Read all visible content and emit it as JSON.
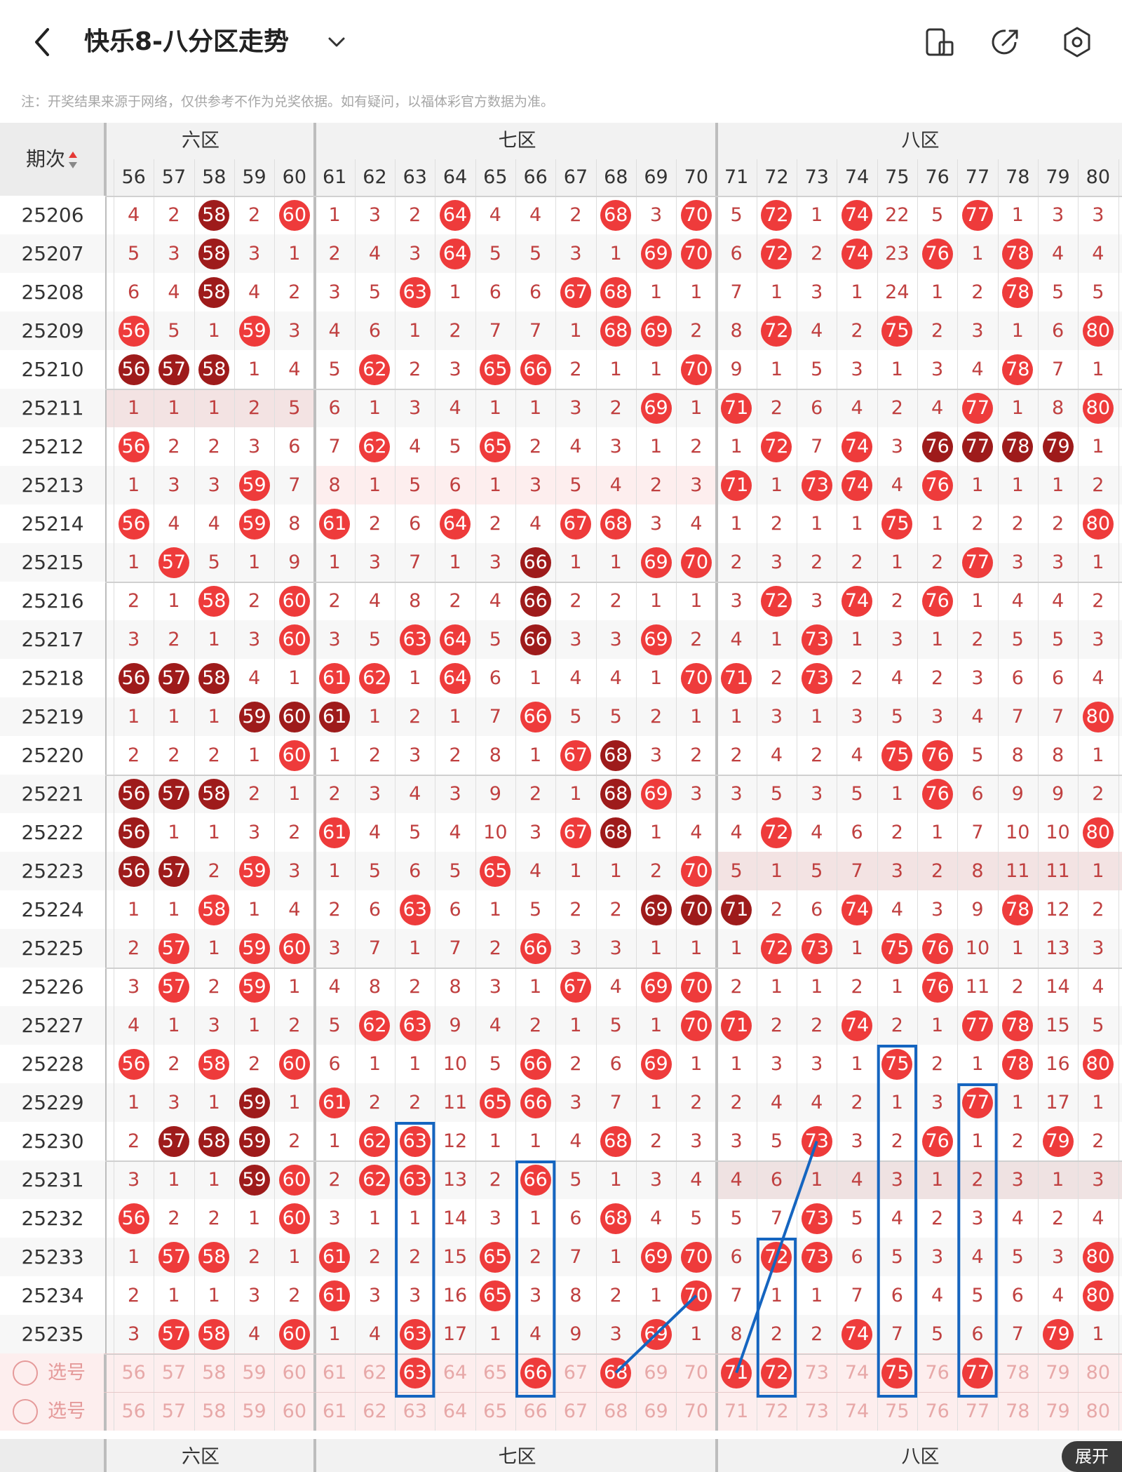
{
  "header": {
    "title": "快乐8-八分区走势",
    "back_icon": "chevron-left-icon",
    "dropdown_icon": "chevron-down-icon",
    "icons": [
      "screen-rotate-icon",
      "share-icon",
      "settings-icon"
    ]
  },
  "notice": "注：开奖结果来源于网络，仅供参考不作为兑奖依据。如有疑问，以福体彩官方数据为准。",
  "table": {
    "period_header": "期次",
    "zones": [
      {
        "label": "六区"
      },
      {
        "label": "七区"
      },
      {
        "label": "八区"
      }
    ],
    "zone_cut_label": "六区",
    "columns": [
      56,
      57,
      58,
      59,
      60,
      61,
      62,
      63,
      64,
      65,
      66,
      67,
      68,
      69,
      70,
      71,
      72,
      73,
      74,
      75,
      76,
      77,
      78,
      79,
      80
    ],
    "periods": [
      "25206",
      "25207",
      "25208",
      "25209",
      "25210",
      "25211",
      "25212",
      "25213",
      "25214",
      "25215",
      "25216",
      "25217",
      "25218",
      "25219",
      "25220",
      "25221",
      "25222",
      "25223",
      "25224",
      "25225",
      "25226",
      "25227",
      "25228",
      "25229",
      "25230",
      "25231",
      "25232",
      "25233",
      "25234",
      "25235"
    ],
    "rows": [
      [
        4,
        2,
        "D58",
        2,
        "R60",
        1,
        3,
        2,
        "R64",
        4,
        4,
        2,
        "R68",
        3,
        "R70",
        5,
        "R72",
        1,
        "R74",
        22,
        5,
        "R77",
        1,
        3,
        3
      ],
      [
        5,
        3,
        "D58",
        3,
        1,
        2,
        4,
        3,
        "R64",
        5,
        5,
        3,
        1,
        "R69",
        "R70",
        6,
        "R72",
        2,
        "R74",
        23,
        "R76",
        1,
        "R78",
        4,
        4
      ],
      [
        6,
        4,
        "D58",
        4,
        2,
        3,
        5,
        "R63",
        1,
        6,
        6,
        "R67",
        "R68",
        1,
        1,
        7,
        1,
        3,
        1,
        24,
        1,
        2,
        "R78",
        5,
        5
      ],
      [
        "R56",
        5,
        1,
        "R59",
        3,
        4,
        6,
        1,
        2,
        7,
        7,
        1,
        "R68",
        "R69",
        2,
        8,
        "R72",
        4,
        2,
        "R75",
        2,
        3,
        1,
        6,
        "R80"
      ],
      [
        "D56",
        "D57",
        "D58",
        1,
        4,
        5,
        "R62",
        2,
        3,
        "R65",
        "R66",
        2,
        1,
        1,
        "R70",
        9,
        1,
        5,
        3,
        1,
        3,
        4,
        "R78",
        7,
        1
      ],
      [
        1,
        1,
        1,
        2,
        5,
        6,
        1,
        3,
        4,
        1,
        1,
        3,
        2,
        "R69",
        1,
        "R71",
        2,
        6,
        4,
        2,
        4,
        "R77",
        1,
        8,
        "R80"
      ],
      [
        "R56",
        2,
        2,
        3,
        6,
        7,
        "R62",
        4,
        5,
        "R65",
        2,
        4,
        3,
        1,
        2,
        1,
        "R72",
        7,
        "R74",
        3,
        "D76",
        "D77",
        "D78",
        "D79",
        1
      ],
      [
        1,
        3,
        3,
        "R59",
        7,
        8,
        1,
        5,
        6,
        1,
        3,
        5,
        4,
        2,
        3,
        "R71",
        1,
        "R73",
        "R74",
        4,
        "R76",
        1,
        1,
        1,
        2
      ],
      [
        "R56",
        4,
        4,
        "R59",
        8,
        "R61",
        2,
        6,
        "R64",
        2,
        4,
        "R67",
        "R68",
        3,
        4,
        1,
        2,
        1,
        1,
        "R75",
        1,
        2,
        2,
        2,
        "R80"
      ],
      [
        1,
        "R57",
        5,
        1,
        9,
        1,
        3,
        7,
        1,
        3,
        "D66",
        1,
        1,
        "R69",
        "R70",
        2,
        3,
        2,
        2,
        1,
        2,
        "R77",
        3,
        3,
        1
      ],
      [
        2,
        1,
        "R58",
        2,
        "R60",
        2,
        4,
        8,
        2,
        4,
        "D66",
        2,
        2,
        1,
        1,
        3,
        "R72",
        3,
        "R74",
        2,
        "R76",
        1,
        4,
        4,
        2
      ],
      [
        3,
        2,
        1,
        3,
        "R60",
        3,
        5,
        "R63",
        "R64",
        5,
        "D66",
        3,
        3,
        "R69",
        2,
        4,
        1,
        "R73",
        1,
        3,
        1,
        2,
        5,
        5,
        3
      ],
      [
        "D56",
        "D57",
        "D58",
        4,
        1,
        "R61",
        "R62",
        1,
        "R64",
        6,
        1,
        4,
        4,
        1,
        "R70",
        "R71",
        2,
        "R73",
        2,
        4,
        2,
        3,
        6,
        6,
        4
      ],
      [
        1,
        1,
        1,
        "D59",
        "D60",
        "D61",
        1,
        2,
        1,
        7,
        "R66",
        5,
        5,
        2,
        1,
        1,
        3,
        1,
        3,
        5,
        3,
        4,
        7,
        7,
        "R80"
      ],
      [
        2,
        2,
        2,
        1,
        "R60",
        1,
        2,
        3,
        2,
        8,
        1,
        "R67",
        "D68",
        3,
        2,
        2,
        4,
        2,
        4,
        "R75",
        "R76",
        5,
        8,
        8,
        1
      ],
      [
        "D56",
        "D57",
        "D58",
        2,
        1,
        2,
        3,
        4,
        3,
        9,
        2,
        1,
        "D68",
        "R69",
        3,
        3,
        5,
        3,
        5,
        1,
        "R76",
        6,
        9,
        9,
        2
      ],
      [
        "D56",
        1,
        1,
        3,
        2,
        "R61",
        4,
        5,
        4,
        10,
        3,
        "R67",
        "D68",
        1,
        4,
        4,
        "R72",
        4,
        6,
        2,
        1,
        7,
        10,
        10,
        "R80"
      ],
      [
        "D56",
        "D57",
        2,
        "R59",
        3,
        1,
        5,
        6,
        5,
        "R65",
        4,
        1,
        1,
        2,
        "R70",
        5,
        1,
        5,
        7,
        3,
        2,
        8,
        11,
        11,
        1
      ],
      [
        1,
        1,
        "R58",
        1,
        4,
        2,
        6,
        "R63",
        6,
        1,
        5,
        2,
        2,
        "D69",
        "D70",
        "D71",
        2,
        6,
        "R74",
        4,
        3,
        9,
        "R78",
        12,
        2
      ],
      [
        2,
        "R57",
        1,
        "R59",
        "R60",
        3,
        7,
        1,
        7,
        2,
        "R66",
        3,
        3,
        1,
        1,
        1,
        "R72",
        "R73",
        1,
        "R75",
        "R76",
        10,
        1,
        13,
        3
      ],
      [
        3,
        "R57",
        2,
        "R59",
        1,
        4,
        8,
        2,
        8,
        3,
        1,
        "R67",
        4,
        "R69",
        "R70",
        2,
        1,
        1,
        2,
        1,
        "R76",
        11,
        2,
        14,
        4
      ],
      [
        4,
        1,
        3,
        1,
        2,
        5,
        "R62",
        "R63",
        9,
        4,
        2,
        1,
        5,
        1,
        "R70",
        "R71",
        2,
        2,
        "R74",
        2,
        1,
        "R77",
        "R78",
        15,
        5
      ],
      [
        "R56",
        2,
        "R58",
        2,
        "R60",
        6,
        1,
        1,
        10,
        5,
        "R66",
        2,
        6,
        "R69",
        1,
        1,
        3,
        3,
        1,
        "R75",
        2,
        1,
        "R78",
        16,
        "R80"
      ],
      [
        1,
        3,
        1,
        "D59",
        1,
        "R61",
        2,
        2,
        11,
        "R65",
        "R66",
        3,
        7,
        1,
        2,
        2,
        4,
        4,
        2,
        1,
        3,
        "R77",
        1,
        17,
        1
      ],
      [
        2,
        "D57",
        "D58",
        "D59",
        2,
        1,
        "R62",
        "R63",
        12,
        1,
        1,
        4,
        "R68",
        2,
        3,
        3,
        5,
        "R73",
        3,
        2,
        "R76",
        1,
        2,
        "R79",
        2
      ],
      [
        3,
        1,
        1,
        "D59",
        "R60",
        2,
        "R62",
        "R63",
        13,
        2,
        "R66",
        5,
        1,
        3,
        4,
        4,
        6,
        1,
        4,
        3,
        1,
        2,
        3,
        1,
        3
      ],
      [
        "R56",
        2,
        2,
        1,
        "R60",
        3,
        1,
        1,
        14,
        3,
        1,
        6,
        "R68",
        4,
        5,
        5,
        7,
        "R73",
        5,
        4,
        2,
        3,
        4,
        2,
        4
      ],
      [
        1,
        "R57",
        "R58",
        2,
        1,
        "R61",
        2,
        2,
        15,
        "R65",
        2,
        7,
        1,
        "R69",
        "R70",
        6,
        "R72",
        "R73",
        6,
        5,
        3,
        4,
        5,
        3,
        "R80"
      ],
      [
        2,
        1,
        1,
        3,
        2,
        "R61",
        3,
        3,
        16,
        "R65",
        3,
        8,
        2,
        1,
        "R70",
        7,
        1,
        1,
        7,
        6,
        4,
        5,
        6,
        4,
        "R80"
      ],
      [
        3,
        "R57",
        "R58",
        4,
        "R60",
        1,
        4,
        "R63",
        17,
        1,
        4,
        9,
        3,
        "R69",
        1,
        8,
        2,
        2,
        "R74",
        7,
        5,
        6,
        7,
        "R79",
        1
      ]
    ],
    "select_label": "选号",
    "expand_label": "展开",
    "colors": {
      "red_ball": "#ee3b3b",
      "dark_ball": "#9e1b1b",
      "text": "#c04040",
      "highlight_box": "#1565c0",
      "select_row_bg": "#fdeeee"
    }
  }
}
